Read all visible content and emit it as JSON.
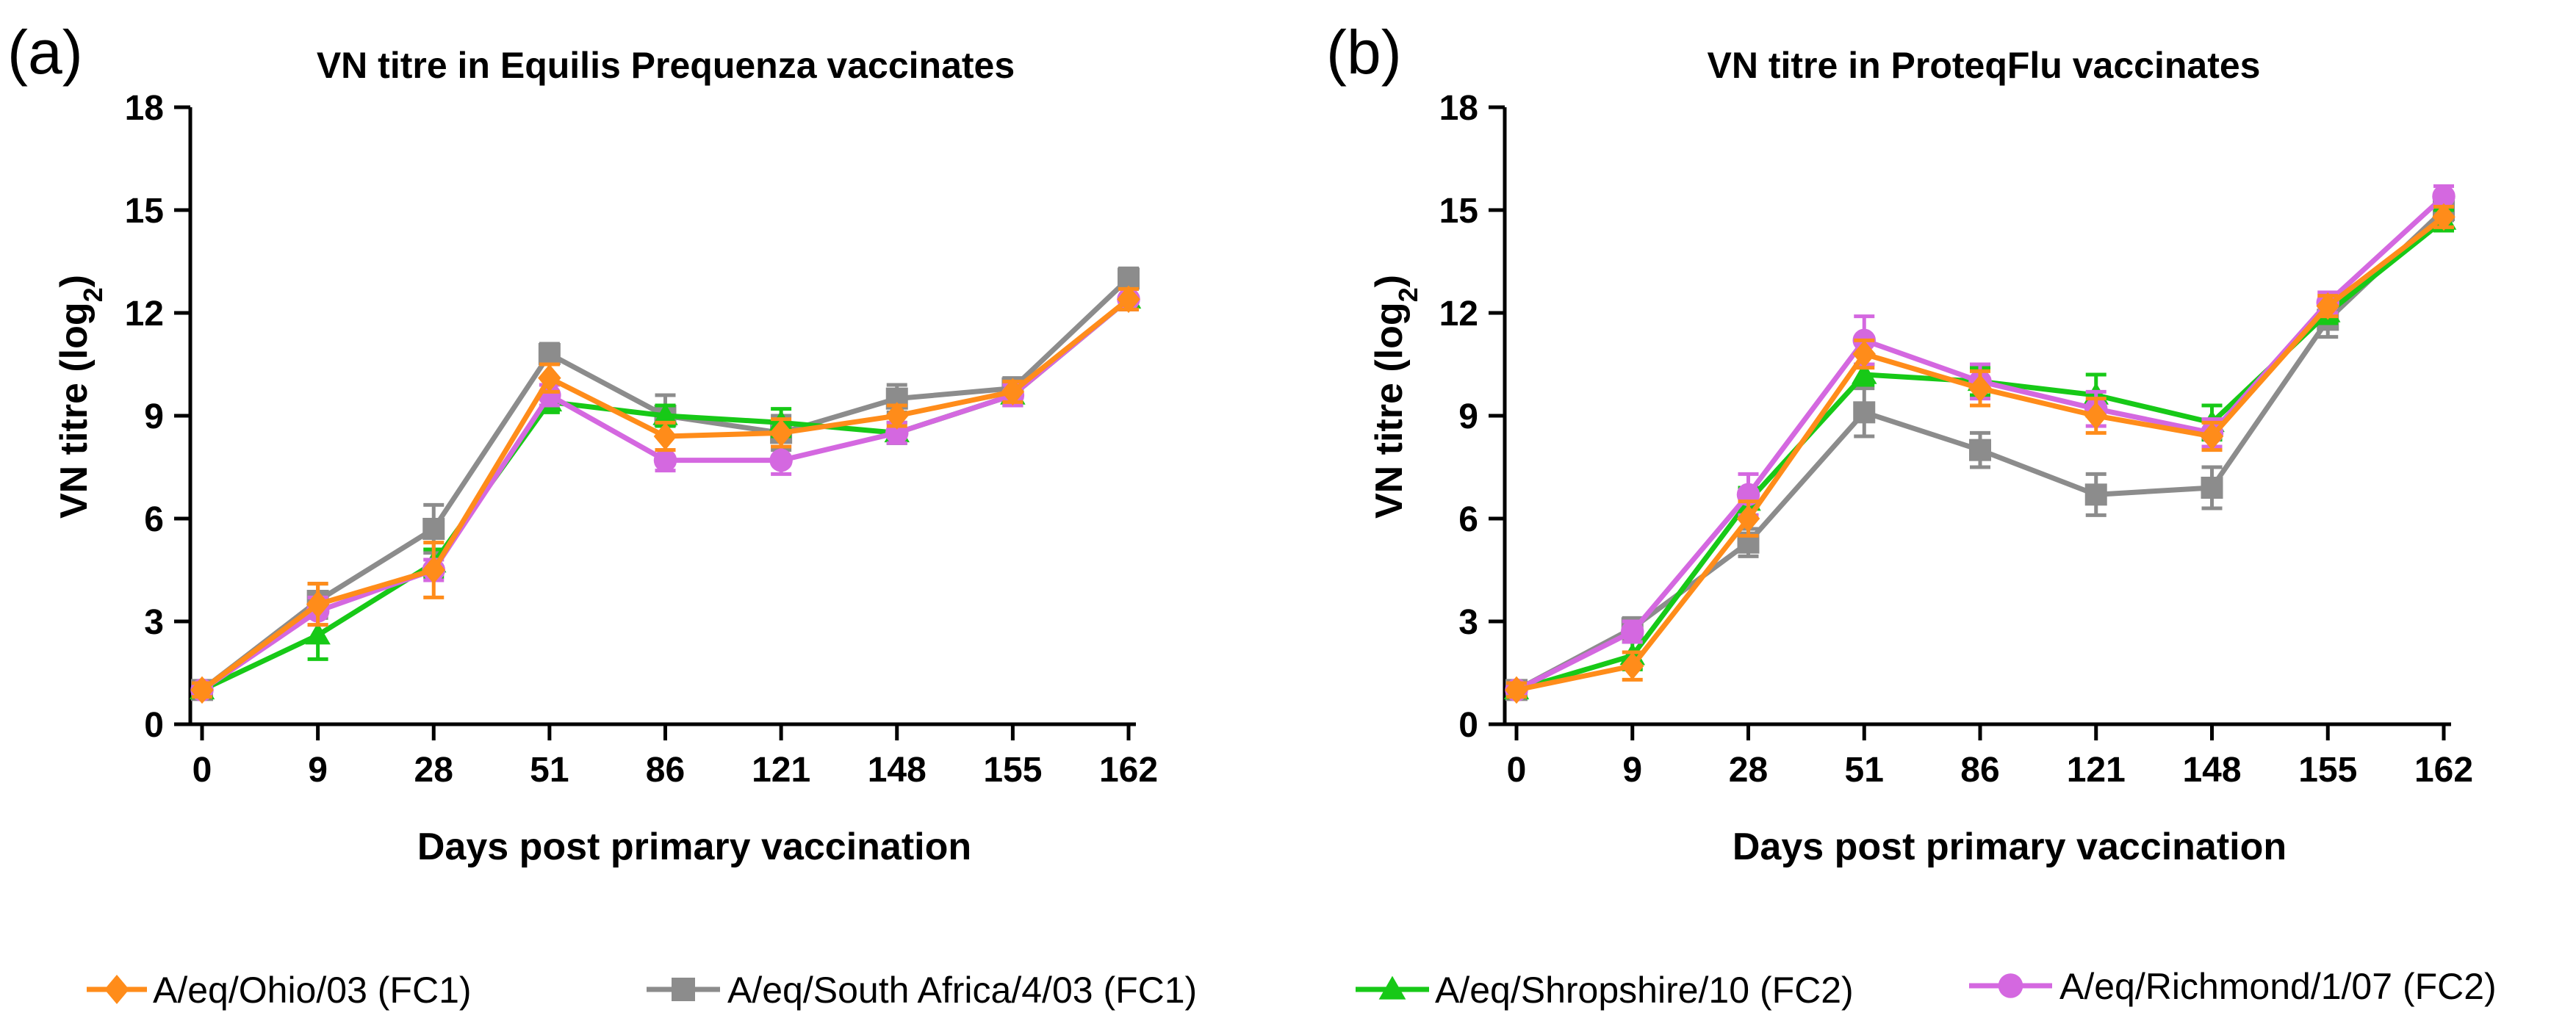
{
  "chart_data": [
    {
      "type": "line",
      "panel_label": "(a)",
      "title": "VN titre in Equilis Prequenza vaccinates",
      "xlabel": "Days post primary vaccination",
      "ylabel_main": "VN titre (log",
      "ylabel_sub": "2",
      "ylabel_close": ")",
      "categories": [
        "0",
        "9",
        "28",
        "51",
        "86",
        "121",
        "148",
        "155",
        "162"
      ],
      "yticks": [
        "0",
        "3",
        "6",
        "9",
        "12",
        "15",
        "18"
      ],
      "ylim": [
        0,
        18
      ],
      "series": [
        {
          "name": "A/eq/South Africa/4/03 (FC1)",
          "color": "#8c8c8c",
          "marker": "square",
          "values": [
            1.0,
            3.6,
            5.7,
            10.8,
            9.0,
            8.5,
            9.5,
            9.8,
            13.0
          ],
          "errors": [
            0.2,
            0.5,
            0.7,
            0.3,
            0.6,
            0.5,
            0.4,
            0.3,
            0.3
          ]
        },
        {
          "name": "A/eq/Shropshire/10 (FC2)",
          "color": "#17c917",
          "marker": "triangle",
          "values": [
            1.0,
            2.6,
            4.7,
            9.4,
            9.0,
            8.8,
            8.5,
            9.6,
            12.4
          ],
          "errors": [
            0.2,
            0.7,
            0.4,
            0.3,
            0.3,
            0.4,
            0.3,
            0.3,
            0.3
          ]
        },
        {
          "name": "A/eq/Richmond/1/07 (FC2)",
          "color": "#d468e0",
          "marker": "circle",
          "values": [
            1.0,
            3.3,
            4.5,
            9.6,
            7.7,
            7.7,
            8.5,
            9.6,
            12.4
          ],
          "errors": [
            0.2,
            0.4,
            0.3,
            0.3,
            0.3,
            0.4,
            0.3,
            0.3,
            0.3
          ]
        },
        {
          "name": "A/eq/Ohio/03 (FC1)",
          "color": "#ff8c1a",
          "marker": "diamond",
          "values": [
            1.0,
            3.5,
            4.5,
            10.1,
            8.4,
            8.5,
            9.0,
            9.7,
            12.4
          ],
          "errors": [
            0.2,
            0.6,
            0.8,
            0.4,
            0.4,
            0.4,
            0.3,
            0.3,
            0.3
          ]
        }
      ]
    },
    {
      "type": "line",
      "panel_label": "(b)",
      "title": "VN titre in ProteqFlu vaccinates",
      "xlabel": "Days post primary vaccination",
      "ylabel_main": "VN titre (log",
      "ylabel_sub": "2",
      "ylabel_close": ")",
      "categories": [
        "0",
        "9",
        "28",
        "51",
        "86",
        "121",
        "148",
        "155",
        "162"
      ],
      "yticks": [
        "0",
        "3",
        "6",
        "9",
        "12",
        "15",
        "18"
      ],
      "ylim": [
        0,
        18
      ],
      "series": [
        {
          "name": "A/eq/South Africa/4/03 (FC1)",
          "color": "#8c8c8c",
          "marker": "square",
          "values": [
            1.0,
            2.8,
            5.3,
            9.1,
            8.0,
            6.7,
            6.9,
            11.8,
            15.0
          ],
          "errors": [
            0.2,
            0.3,
            0.4,
            0.7,
            0.5,
            0.6,
            0.6,
            0.5,
            0.3
          ]
        },
        {
          "name": "A/eq/Shropshire/10 (FC2)",
          "color": "#17c917",
          "marker": "triangle",
          "values": [
            1.0,
            2.0,
            6.5,
            10.2,
            10.0,
            9.6,
            8.8,
            12.0,
            14.7
          ],
          "errors": [
            0.2,
            0.4,
            0.4,
            0.3,
            0.4,
            0.6,
            0.5,
            0.3,
            0.3
          ]
        },
        {
          "name": "A/eq/Richmond/1/07 (FC2)",
          "color": "#d468e0",
          "marker": "circle",
          "values": [
            1.0,
            2.7,
            6.7,
            11.2,
            10.0,
            9.2,
            8.5,
            12.3,
            15.4
          ],
          "errors": [
            0.2,
            0.3,
            0.6,
            0.7,
            0.5,
            0.5,
            0.4,
            0.3,
            0.3
          ]
        },
        {
          "name": "A/eq/Ohio/03 (FC1)",
          "color": "#ff8c1a",
          "marker": "diamond",
          "values": [
            1.0,
            1.7,
            6.0,
            10.8,
            9.8,
            9.0,
            8.4,
            12.2,
            14.8
          ],
          "errors": [
            0.2,
            0.4,
            0.5,
            0.4,
            0.5,
            0.5,
            0.4,
            0.3,
            0.3
          ]
        }
      ]
    }
  ],
  "legend": [
    {
      "label": "A/eq/Ohio/03 (FC1)",
      "color": "#ff8c1a",
      "marker": "diamond"
    },
    {
      "label": "A/eq/South Africa/4/03 (FC1)",
      "color": "#8c8c8c",
      "marker": "square"
    },
    {
      "label": "A/eq/Shropshire/10 (FC2)",
      "color": "#17c917",
      "marker": "triangle"
    },
    {
      "label": "A/eq/Richmond/1/07 (FC2)",
      "color": "#d468e0",
      "marker": "circle"
    }
  ]
}
